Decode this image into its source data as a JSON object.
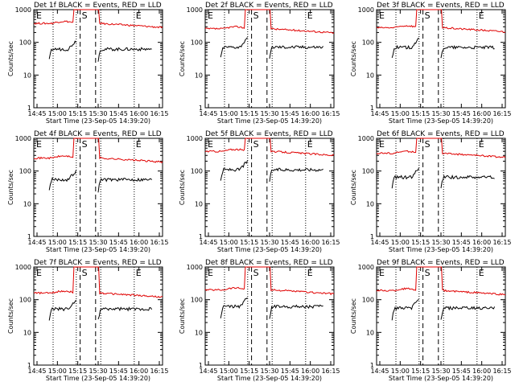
{
  "common": {
    "title_template": "Det {n}f BLACK = Events, RED = LLD",
    "ylabel": "Counts/sec",
    "xlabel": "Start Time (23-Sep-05 14:39:20)",
    "xtick_labels": [
      "14:45",
      "15:00",
      "15:15",
      "15:30",
      "15:45",
      "16:00",
      "16:15"
    ],
    "ytick_labels": [
      "1",
      "10",
      "100",
      "1000"
    ],
    "event_markers": [
      "E",
      "S",
      "E"
    ],
    "colors": {
      "events": "#000000",
      "lld": "#e00000",
      "axes": "#000000"
    }
  },
  "chart_data": [
    {
      "type": "line",
      "detector": 1,
      "title": "Det 1f BLACK = Events, RED = LLD",
      "yscale": "log",
      "ylim": [
        1,
        1000
      ],
      "x_range_min": [
        0,
        100
      ],
      "series": [
        {
          "name": "BLACK = Events",
          "level": 62
        },
        {
          "name": "RED = LLD",
          "level": 380
        }
      ],
      "dashed_lines_min": [
        36,
        48
      ],
      "dotted_lines_min": [
        15,
        33,
        52,
        78
      ]
    },
    {
      "type": "line",
      "detector": 2,
      "title": "Det 2f BLACK = Events, RED = LLD",
      "yscale": "log",
      "ylim": [
        1,
        1000
      ],
      "x_range_min": [
        0,
        100
      ],
      "series": [
        {
          "name": "BLACK = Events",
          "level": 72
        },
        {
          "name": "RED = LLD",
          "level": 260
        }
      ],
      "dashed_lines_min": [
        36,
        48
      ],
      "dotted_lines_min": [
        15,
        33,
        52,
        78
      ]
    },
    {
      "type": "line",
      "detector": 3,
      "title": "Det 3f BLACK = Events, RED = LLD",
      "yscale": "log",
      "ylim": [
        1,
        1000
      ],
      "x_range_min": [
        0,
        100
      ],
      "series": [
        {
          "name": "BLACK = Events",
          "level": 70
        },
        {
          "name": "RED = LLD",
          "level": 280
        }
      ],
      "dashed_lines_min": [
        36,
        48
      ],
      "dotted_lines_min": [
        15,
        33,
        52,
        78
      ]
    },
    {
      "type": "line",
      "detector": 4,
      "title": "Det 4f BLACK = Events, RED = LLD",
      "yscale": "log",
      "ylim": [
        1,
        1000
      ],
      "x_range_min": [
        0,
        100
      ],
      "series": [
        {
          "name": "BLACK = Events",
          "level": 55
        },
        {
          "name": "RED = LLD",
          "level": 250
        }
      ],
      "dashed_lines_min": [
        36,
        48
      ],
      "dotted_lines_min": [
        15,
        33,
        52,
        78
      ]
    },
    {
      "type": "line",
      "detector": 5,
      "title": "Det 5f BLACK = Events, RED = LLD",
      "yscale": "log",
      "ylim": [
        1,
        1000
      ],
      "x_range_min": [
        0,
        100
      ],
      "series": [
        {
          "name": "BLACK = Events",
          "level": 110
        },
        {
          "name": "RED = LLD",
          "level": 400
        }
      ],
      "dashed_lines_min": [
        36,
        48
      ],
      "dotted_lines_min": [
        15,
        33,
        52,
        78
      ]
    },
    {
      "type": "line",
      "detector": 6,
      "title": "Det 6f BLACK = Events, RED = LLD",
      "yscale": "log",
      "ylim": [
        1,
        1000
      ],
      "x_range_min": [
        0,
        100
      ],
      "series": [
        {
          "name": "BLACK = Events",
          "level": 65
        },
        {
          "name": "RED = LLD",
          "level": 350
        }
      ],
      "dashed_lines_min": [
        36,
        48
      ],
      "dotted_lines_min": [
        15,
        33,
        52,
        78
      ]
    },
    {
      "type": "line",
      "detector": 7,
      "title": "Det 7f BLACK = Events, RED = LLD",
      "yscale": "log",
      "ylim": [
        1,
        1000
      ],
      "x_range_min": [
        0,
        100
      ],
      "series": [
        {
          "name": "BLACK = Events",
          "level": 52
        },
        {
          "name": "RED = LLD",
          "level": 160
        }
      ],
      "dashed_lines_min": [
        36,
        48
      ],
      "dotted_lines_min": [
        15,
        33,
        52,
        78
      ]
    },
    {
      "type": "line",
      "detector": 8,
      "title": "Det 8f BLACK = Events, RED = LLD",
      "yscale": "log",
      "ylim": [
        1,
        1000
      ],
      "x_range_min": [
        0,
        100
      ],
      "series": [
        {
          "name": "BLACK = Events",
          "level": 62
        },
        {
          "name": "RED = LLD",
          "level": 200
        }
      ],
      "dashed_lines_min": [
        36,
        48
      ],
      "dotted_lines_min": [
        15,
        33,
        52,
        78
      ]
    },
    {
      "type": "line",
      "detector": 9,
      "title": "Det 9f BLACK = Events, RED = LLD",
      "yscale": "log",
      "ylim": [
        1,
        1000
      ],
      "x_range_min": [
        0,
        100
      ],
      "series": [
        {
          "name": "BLACK = Events",
          "level": 55
        },
        {
          "name": "RED = LLD",
          "level": 190
        }
      ],
      "dashed_lines_min": [
        36,
        48
      ],
      "dotted_lines_min": [
        15,
        33,
        52,
        78
      ]
    }
  ]
}
